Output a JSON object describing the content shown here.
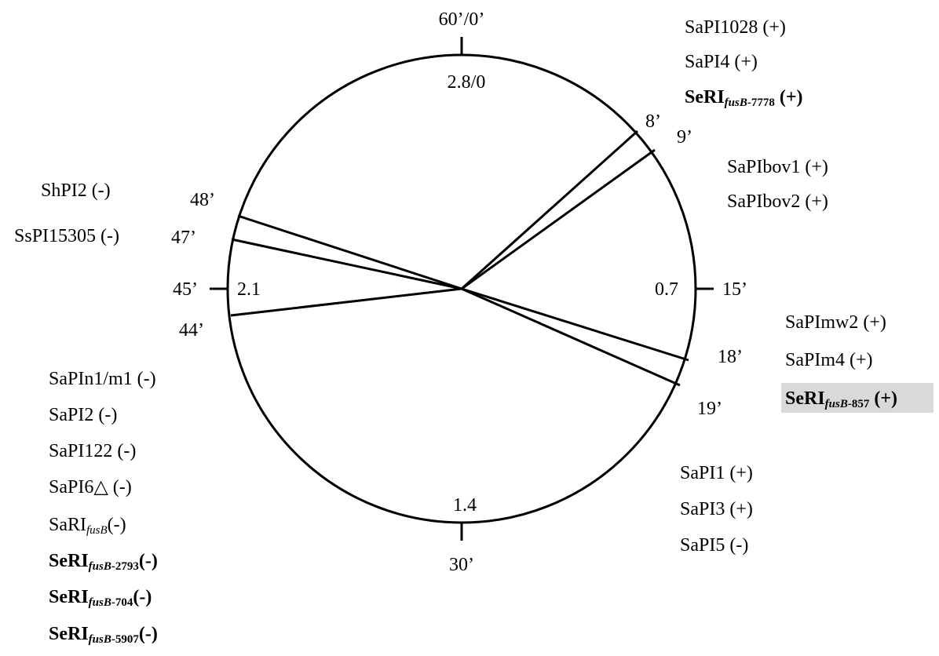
{
  "chromosome_map": {
    "minute_labels": {
      "top": "60’/0’",
      "right": "15’",
      "bottom": "30’",
      "left": "45’"
    },
    "distance_labels": {
      "top": "2.8/0",
      "right": "0.7",
      "bottom": "1.4",
      "left": "2.1"
    },
    "site_labels": {
      "m8": "8’",
      "m9": "9’",
      "m18": "18’",
      "m19": "19’",
      "m44": "44’",
      "m47": "47’",
      "m48": "48’"
    },
    "groups": {
      "top_right": {
        "items": [
          "SaPI1028 (+)",
          "SaPI4 (+)"
        ],
        "bold_item": {
          "main": "SeRI",
          "sub_italic": "fusB",
          "sub_num": "-7778",
          "suffix": " (+)"
        }
      },
      "bov": {
        "items": [
          "SaPIbov1 (+)",
          "SaPIbov2 (+)"
        ]
      },
      "left_upper": {
        "items": [
          "ShPI2 (-)",
          "SsPI15305 (-)"
        ]
      },
      "right_mid": {
        "items": [
          "SaPImw2 (+)",
          "SaPIm4 (+)"
        ],
        "bold_item": {
          "main": "SeRI",
          "sub_italic": "fusB",
          "sub_num": "-857",
          "suffix": " (+)"
        },
        "highlight_color": "#d9d9d9"
      },
      "right_lower": {
        "items": [
          "SaPI1 (+)",
          "SaPI3 (+)",
          "SaPI5 (-)"
        ]
      },
      "left_lower": {
        "items": [
          "SaPIn1/m1 (-)",
          "SaPI2 (-)",
          "SaPI122 (-)",
          "SaPI6△ (-)"
        ],
        "plain_item": {
          "main": "SaRI",
          "sub_italic": "fusB",
          "suffix": "(-)"
        },
        "bold_items": [
          {
            "main": "SeRI",
            "sub_italic": "fusB",
            "sub_num": "-2793",
            "suffix": "(-)"
          },
          {
            "main": "SeRI",
            "sub_italic": "fusB",
            "sub_num": "-704",
            "suffix": "(-)"
          },
          {
            "main": "SeRI",
            "sub_italic": "fusB",
            "sub_num": "-5907",
            "suffix": "(-)"
          }
        ]
      }
    },
    "colors": {
      "stroke": "#000000",
      "highlight": "#d9d9d9"
    }
  }
}
